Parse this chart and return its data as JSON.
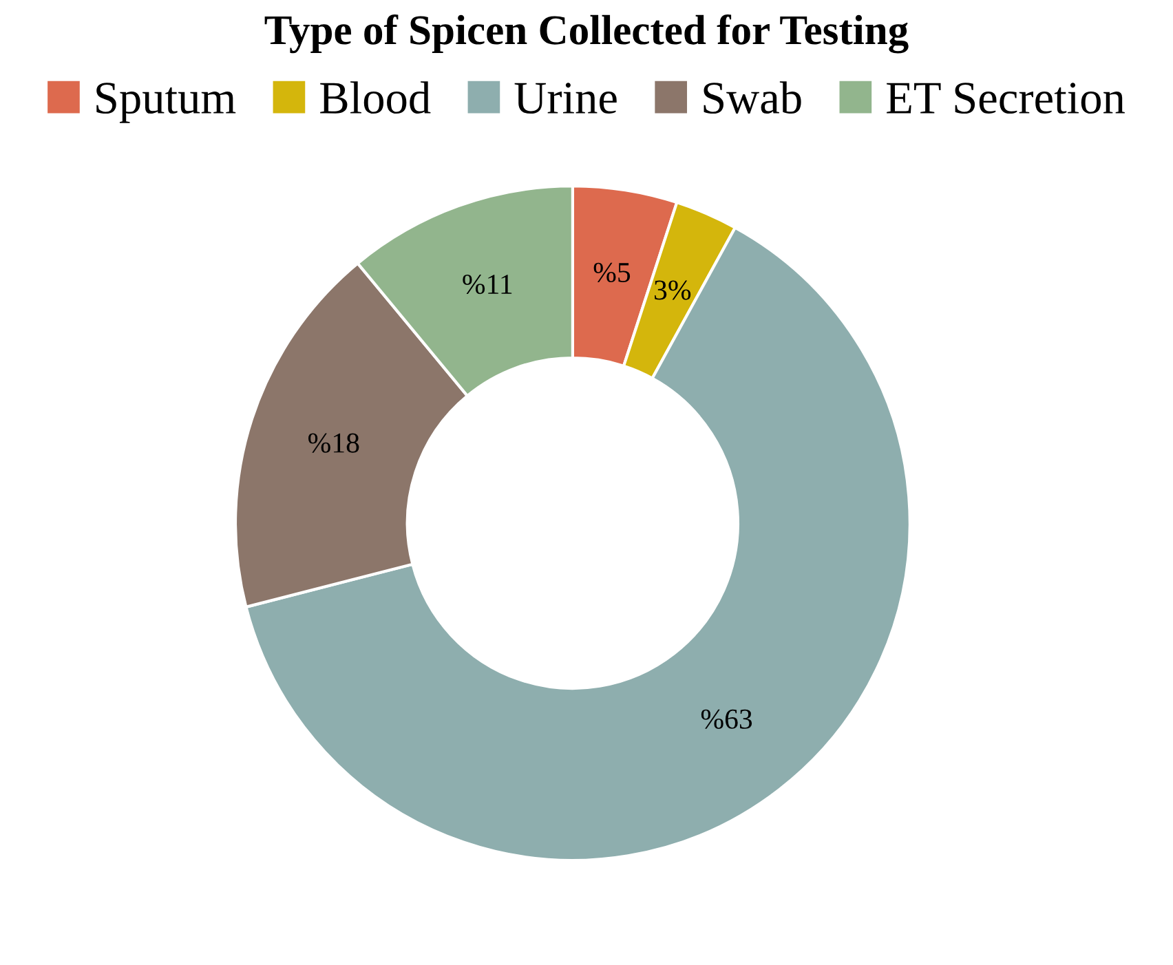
{
  "chart_data": {
    "type": "donut",
    "title": "Type of Spicen Collected for Testing",
    "categories": [
      "Sputum",
      "Blood",
      "Urine",
      "Swab",
      "ET Secretion"
    ],
    "values": [
      5,
      3,
      63,
      18,
      11
    ],
    "value_labels": [
      "%5",
      "3%",
      "%63",
      "%18",
      "%11"
    ],
    "colors": [
      "#dd6a4e",
      "#d4b60c",
      "#8eaeae",
      "#8c766a",
      "#92b58d"
    ],
    "legend": "top"
  }
}
